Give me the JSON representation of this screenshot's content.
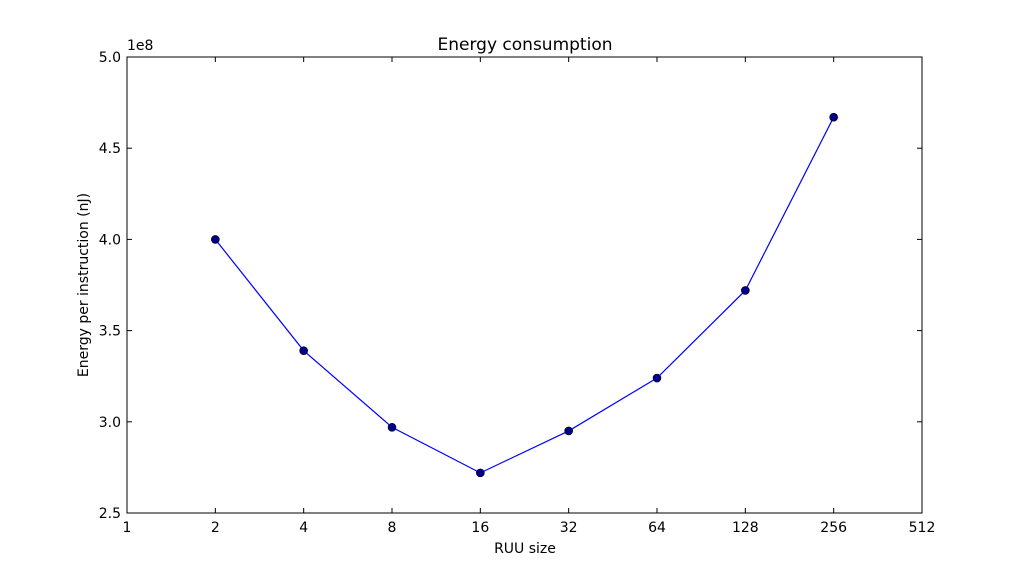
{
  "chart_data": {
    "type": "line",
    "title": "Energy consumption",
    "xlabel": "RUU size",
    "ylabel": "Energy per instruction (nJ)",
    "y_multiplier_label": "1e8",
    "x_scale": "log2",
    "xlim": [
      1,
      512
    ],
    "ylim": [
      2.5,
      5.0
    ],
    "x_ticks": [
      1,
      2,
      4,
      8,
      16,
      32,
      64,
      128,
      256,
      512
    ],
    "x_tick_labels": [
      "1",
      "2",
      "4",
      "8",
      "16",
      "32",
      "64",
      "128",
      "256",
      "512"
    ],
    "y_ticks": [
      2.5,
      3.0,
      3.5,
      4.0,
      4.5,
      5.0
    ],
    "y_tick_labels": [
      "2.5",
      "3.0",
      "3.5",
      "4.0",
      "4.5",
      "5.0"
    ],
    "grid": false,
    "series": [
      {
        "x": [
          2,
          4,
          8,
          16,
          32,
          64,
          128,
          256
        ],
        "y": [
          4.0,
          3.39,
          2.97,
          2.72,
          2.95,
          3.24,
          3.72,
          4.67
        ],
        "color": "#0000ff",
        "marker_color": "#00008b"
      }
    ]
  }
}
